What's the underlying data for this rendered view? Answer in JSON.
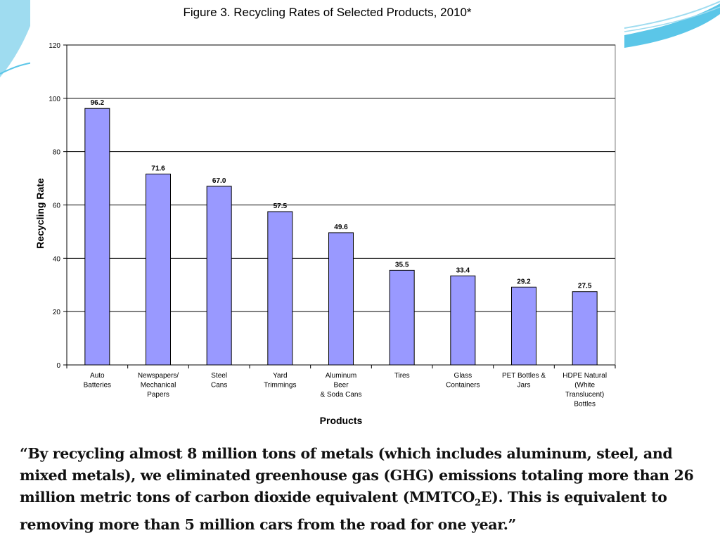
{
  "chart_data": {
    "type": "bar",
    "title": "Figure 3. Recycling Rates of Selected Products, 2010*",
    "xlabel": "Products",
    "ylabel": "Recycling Rate",
    "ylim": [
      0,
      120
    ],
    "yticks": [
      0,
      20,
      40,
      60,
      80,
      100,
      120
    ],
    "grid": true,
    "legend": "none",
    "bar_color": "#9999ff",
    "categories": [
      [
        "Auto",
        "Batteries"
      ],
      [
        "Newspapers/",
        "Mechanical",
        "Papers"
      ],
      [
        "Steel",
        "Cans"
      ],
      [
        "Yard",
        "Trimmings"
      ],
      [
        "Aluminum",
        "Beer",
        "& Soda Cans"
      ],
      [
        "Tires"
      ],
      [
        "Glass",
        "Containers"
      ],
      [
        "PET Bottles  &",
        "Jars"
      ],
      [
        "HDPE Natural",
        "(White",
        "Translucent)",
        "Bottles"
      ]
    ],
    "values": [
      96.2,
      71.6,
      67.0,
      57.5,
      49.6,
      35.5,
      33.4,
      29.2,
      27.5
    ],
    "data_labels": [
      "96.2",
      "71.6",
      "67.0",
      "57.5",
      "49.6",
      "35.5",
      "33.4",
      "29.2",
      "27.5"
    ]
  },
  "caption": {
    "text_before": "“By recycling almost 8 million tons of metals (which includes aluminum, steel, and mixed metals), we eliminated greenhouse gas (GHG) emissions totaling more than 26 million metric tons of carbon dioxide equivalent (MMTCO",
    "subscript": "2",
    "text_after": "E). This is equivalent to removing more than 5 million cars from the road for one year.”"
  },
  "colors": {
    "bar": "#9999ff",
    "deco_blue": "#5bc6e8"
  }
}
